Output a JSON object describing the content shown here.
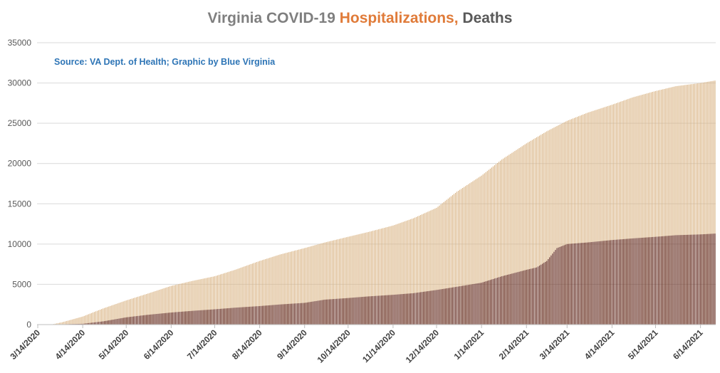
{
  "chart_data": {
    "type": "bar",
    "title_parts": [
      {
        "text": "Virginia COVID-19 ",
        "color": "#7f7f7f"
      },
      {
        "text": "Hospitalizations, ",
        "color": "#e07b39"
      },
      {
        "text": "Deaths",
        "color": "#595959"
      }
    ],
    "annotation": "Source: VA Dept. of Health; Graphic by Blue Virginia",
    "annotation_color": "#2e75b6",
    "ylim": [
      0,
      35000
    ],
    "yticks": [
      0,
      5000,
      10000,
      15000,
      20000,
      25000,
      30000,
      35000
    ],
    "xlabel": "",
    "ylabel": "",
    "grid": true,
    "x_start": "3/14/2020",
    "x_end": "6/24/2021",
    "xticks": [
      "3/14/2020",
      "4/14/2020",
      "5/14/2020",
      "6/14/2020",
      "7/14/2020",
      "8/14/2020",
      "9/14/2020",
      "10/14/2020",
      "11/14/2020",
      "12/14/2020",
      "1/14/2021",
      "2/14/2021",
      "3/14/2021",
      "4/14/2021",
      "5/14/2021",
      "6/14/2021"
    ],
    "series": [
      {
        "color": "#d9b383",
        "points": [
          [
            "3/14/2020",
            0
          ],
          [
            "3/24/2020",
            30
          ],
          [
            "3/31/2020",
            300
          ],
          [
            "4/14/2020",
            1000
          ],
          [
            "4/28/2020",
            2000
          ],
          [
            "5/14/2020",
            3000
          ],
          [
            "5/28/2020",
            3800
          ],
          [
            "6/14/2020",
            4800
          ],
          [
            "6/28/2020",
            5400
          ],
          [
            "7/14/2020",
            6000
          ],
          [
            "7/28/2020",
            6800
          ],
          [
            "8/14/2020",
            7900
          ],
          [
            "8/28/2020",
            8700
          ],
          [
            "9/14/2020",
            9500
          ],
          [
            "9/28/2020",
            10200
          ],
          [
            "10/14/2020",
            10900
          ],
          [
            "10/28/2020",
            11500
          ],
          [
            "11/14/2020",
            12300
          ],
          [
            "11/28/2020",
            13200
          ],
          [
            "12/14/2020",
            14500
          ],
          [
            "12/28/2020",
            16500
          ],
          [
            "1/14/2021",
            18500
          ],
          [
            "1/28/2021",
            20500
          ],
          [
            "2/14/2021",
            22500
          ],
          [
            "2/28/2021",
            24000
          ],
          [
            "3/14/2021",
            25300
          ],
          [
            "3/28/2021",
            26300
          ],
          [
            "4/14/2021",
            27300
          ],
          [
            "4/28/2021",
            28200
          ],
          [
            "5/14/2021",
            29000
          ],
          [
            "5/28/2021",
            29600
          ],
          [
            "6/14/2021",
            30000
          ],
          [
            "6/24/2021",
            30300
          ]
        ]
      },
      {
        "color": "#5b2118",
        "points": [
          [
            "3/14/2020",
            0
          ],
          [
            "3/24/2020",
            10
          ],
          [
            "4/14/2020",
            100
          ],
          [
            "4/28/2020",
            400
          ],
          [
            "5/14/2020",
            900
          ],
          [
            "5/28/2020",
            1200
          ],
          [
            "6/14/2020",
            1500
          ],
          [
            "6/28/2020",
            1700
          ],
          [
            "7/14/2020",
            1900
          ],
          [
            "7/28/2020",
            2100
          ],
          [
            "8/14/2020",
            2300
          ],
          [
            "8/28/2020",
            2500
          ],
          [
            "9/14/2020",
            2700
          ],
          [
            "9/28/2020",
            3100
          ],
          [
            "10/14/2020",
            3300
          ],
          [
            "10/28/2020",
            3500
          ],
          [
            "11/14/2020",
            3700
          ],
          [
            "11/28/2020",
            3900
          ],
          [
            "12/14/2020",
            4300
          ],
          [
            "12/28/2020",
            4700
          ],
          [
            "1/14/2021",
            5200
          ],
          [
            "1/28/2021",
            6000
          ],
          [
            "2/14/2021",
            6800
          ],
          [
            "2/21/2021",
            7100
          ],
          [
            "2/28/2021",
            7900
          ],
          [
            "3/7/2021",
            9500
          ],
          [
            "3/14/2021",
            10000
          ],
          [
            "3/28/2021",
            10200
          ],
          [
            "4/14/2021",
            10500
          ],
          [
            "4/28/2021",
            10700
          ],
          [
            "5/14/2021",
            10900
          ],
          [
            "5/28/2021",
            11100
          ],
          [
            "6/14/2021",
            11200
          ],
          [
            "6/24/2021",
            11300
          ]
        ]
      }
    ]
  }
}
